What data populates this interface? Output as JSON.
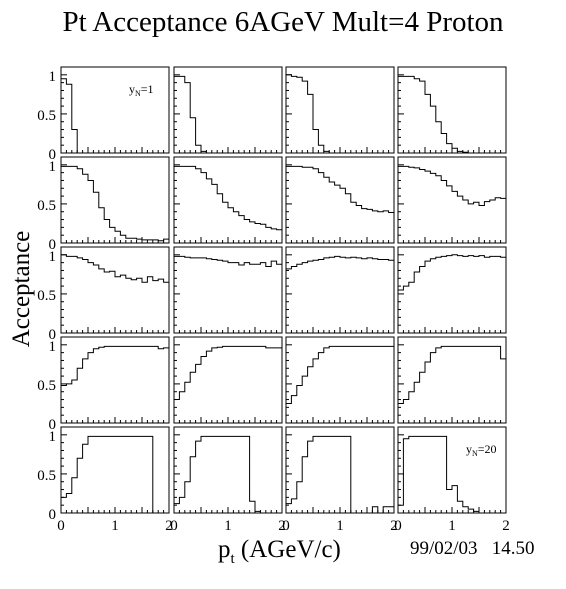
{
  "title": "Pt Acceptance 6AGeV Mult=4 Proton",
  "ylabel": "Acceptance",
  "xlabel_main": "p",
  "xlabel_sub": "t",
  "xlabel_unit": " (AGeV/c)",
  "timestamp": "99/02/03   14.50",
  "chart_data": {
    "type": "line",
    "layout": {
      "rows": 5,
      "cols": 4
    },
    "x_range": [
      0,
      2
    ],
    "y_range": [
      0,
      1.1
    ],
    "x_tick_labels": [
      "0",
      "1",
      "2"
    ],
    "y_tick_labels": [
      "0",
      "0.5",
      "1"
    ],
    "bins": 20,
    "annotations": [
      {
        "panel": 0,
        "base": "y",
        "sub": "N",
        "suffix": "=1"
      },
      {
        "panel": 19,
        "base": "y",
        "sub": "N",
        "suffix": "=20"
      }
    ],
    "panels": [
      {
        "values": [
          0.95,
          0.88,
          0.3,
          0,
          0,
          0,
          0,
          0,
          0,
          0,
          0,
          0,
          0,
          0,
          0,
          0,
          0,
          0,
          0,
          0
        ]
      },
      {
        "values": [
          0.98,
          0.98,
          0.9,
          0.45,
          0.1,
          0.02,
          0,
          0,
          0,
          0,
          0,
          0,
          0,
          0,
          0,
          0,
          0,
          0,
          0,
          0
        ]
      },
      {
        "values": [
          1.0,
          0.98,
          0.97,
          0.92,
          0.75,
          0.3,
          0.1,
          0.02,
          0,
          0,
          0,
          0,
          0,
          0,
          0,
          0,
          0,
          0,
          0,
          0
        ]
      },
      {
        "values": [
          0.98,
          0.98,
          0.98,
          0.95,
          0.92,
          0.75,
          0.6,
          0.4,
          0.25,
          0.12,
          0.06,
          0.02,
          0.01,
          0.0,
          0.0,
          0,
          0,
          0,
          0,
          0
        ]
      },
      {
        "values": [
          0.98,
          0.98,
          0.98,
          0.95,
          0.88,
          0.8,
          0.65,
          0.45,
          0.3,
          0.2,
          0.15,
          0.1,
          0.06,
          0.06,
          0.05,
          0.04,
          0.04,
          0.04,
          0.03,
          0.05
        ]
      },
      {
        "values": [
          0.98,
          0.98,
          0.98,
          0.98,
          0.95,
          0.9,
          0.82,
          0.75,
          0.63,
          0.52,
          0.45,
          0.4,
          0.35,
          0.3,
          0.27,
          0.25,
          0.24,
          0.2,
          0.18,
          0.17
        ]
      },
      {
        "values": [
          0.98,
          0.98,
          0.98,
          0.97,
          0.97,
          0.95,
          0.9,
          0.84,
          0.78,
          0.74,
          0.7,
          0.63,
          0.52,
          0.48,
          0.44,
          0.43,
          0.41,
          0.4,
          0.41,
          0.39
        ]
      },
      {
        "values": [
          0.98,
          0.98,
          0.97,
          0.96,
          0.94,
          0.92,
          0.89,
          0.86,
          0.8,
          0.73,
          0.66,
          0.6,
          0.55,
          0.5,
          0.52,
          0.48,
          0.53,
          0.55,
          0.58,
          0.57
        ]
      },
      {
        "values": [
          1.0,
          0.98,
          0.98,
          0.96,
          0.94,
          0.9,
          0.87,
          0.82,
          0.78,
          0.79,
          0.72,
          0.74,
          0.7,
          0.68,
          0.7,
          0.65,
          0.72,
          0.67,
          0.69,
          0.65
        ]
      },
      {
        "values": [
          0.98,
          0.98,
          0.97,
          0.96,
          0.96,
          0.96,
          0.95,
          0.94,
          0.93,
          0.92,
          0.9,
          0.9,
          0.87,
          0.9,
          0.88,
          0.88,
          0.9,
          0.85,
          0.92,
          0.88
        ]
      },
      {
        "values": [
          0.82,
          0.85,
          0.88,
          0.9,
          0.92,
          0.93,
          0.94,
          0.96,
          0.97,
          0.98,
          0.97,
          0.96,
          0.97,
          0.96,
          0.95,
          0.96,
          0.95,
          0.94,
          0.94,
          0.93
        ]
      },
      {
        "values": [
          0.55,
          0.6,
          0.65,
          0.78,
          0.85,
          0.92,
          0.95,
          0.97,
          0.98,
          0.99,
          1.0,
          0.99,
          0.98,
          0.99,
          0.98,
          0.99,
          0.97,
          0.98,
          0.98,
          0.97
        ]
      },
      {
        "values": [
          0.48,
          0.5,
          0.55,
          0.7,
          0.82,
          0.9,
          0.95,
          0.97,
          0.98,
          0.98,
          0.98,
          0.98,
          0.98,
          0.98,
          0.98,
          0.98,
          0.98,
          0.98,
          0.95,
          0.96
        ]
      },
      {
        "values": [
          0.3,
          0.4,
          0.52,
          0.65,
          0.75,
          0.85,
          0.92,
          0.96,
          0.97,
          0.98,
          0.98,
          0.98,
          0.98,
          0.98,
          0.98,
          0.98,
          0.98,
          0.96,
          0.96,
          0.96
        ]
      },
      {
        "values": [
          0.25,
          0.35,
          0.48,
          0.6,
          0.72,
          0.82,
          0.9,
          0.96,
          0.98,
          0.98,
          0.98,
          0.98,
          0.98,
          0.98,
          0.98,
          0.98,
          0.98,
          0.98,
          0.98,
          0.98
        ]
      },
      {
        "values": [
          0.25,
          0.3,
          0.4,
          0.52,
          0.65,
          0.78,
          0.9,
          0.96,
          0.98,
          0.98,
          0.98,
          0.98,
          0.98,
          0.98,
          0.98,
          0.98,
          0.98,
          0.98,
          0.98,
          0.82
        ]
      },
      {
        "values": [
          0.2,
          0.25,
          0.45,
          0.7,
          0.88,
          0.98,
          0.98,
          0.98,
          0.98,
          0.98,
          0.98,
          0.98,
          0.98,
          0.98,
          0.98,
          0.98,
          0.98,
          0,
          0,
          0
        ]
      },
      {
        "values": [
          0.12,
          0.2,
          0.4,
          0.72,
          0.92,
          0.98,
          0.98,
          0.98,
          0.98,
          0.98,
          0.98,
          0.98,
          0.98,
          0.98,
          0.15,
          0.02,
          0,
          0,
          0,
          0
        ]
      },
      {
        "values": [
          0.12,
          0.18,
          0.4,
          0.72,
          0.92,
          0.98,
          0.98,
          0.98,
          0.98,
          0.98,
          0.98,
          0.98,
          0,
          0,
          0,
          0,
          0.08,
          0,
          0.08,
          0.08
        ]
      },
      {
        "values": [
          0.1,
          0.95,
          0.98,
          0.98,
          0.98,
          0.98,
          0.98,
          0.98,
          0.98,
          0.3,
          0.35,
          0.15,
          0.08,
          0.05,
          0.02,
          0.0,
          0.0,
          0.0,
          0.0,
          0.0
        ]
      }
    ]
  }
}
